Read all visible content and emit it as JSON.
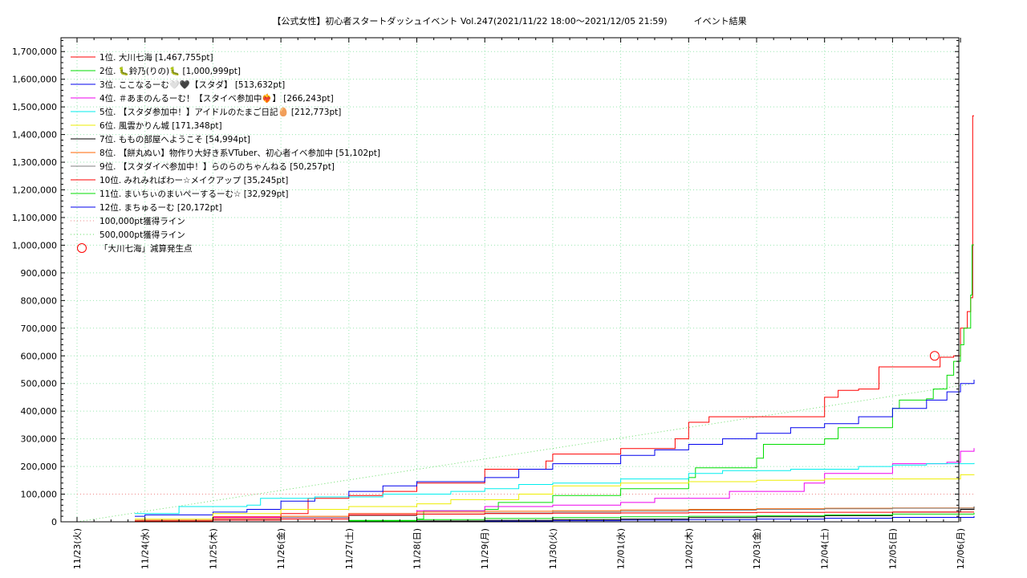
{
  "chart_data": {
    "type": "line",
    "title": "【公式女性】初心者スタートダッシュイベント Vol.247(2021/11/22 18:00～2021/12/05 21:59)　　　イベント結果",
    "xlabel": "",
    "ylabel": "",
    "ylim": [
      0,
      1750000
    ],
    "xlim": [
      "2021-11-22 18:00",
      "2021-12-06 00:00"
    ],
    "grid": true,
    "legend_position": "top-left",
    "x_ticks": [
      "11/23(火)",
      "11/24(水)",
      "11/25(木)",
      "11/26(金)",
      "11/27(土)",
      "11/28(日)",
      "11/29(月)",
      "11/30(火)",
      "12/01(水)",
      "12/02(木)",
      "12/03(金)",
      "12/04(土)",
      "12/05(日)",
      "12/06(月)"
    ],
    "y_ticks": [
      "0",
      "100,000",
      "200,000",
      "300,000",
      "400,000",
      "500,000",
      "600,000",
      "700,000",
      "800,000",
      "900,000",
      "1,000,000",
      "1,100,000",
      "1,200,000",
      "1,300,000",
      "1,400,000",
      "1,500,000",
      "1,600,000",
      "1,700,000"
    ],
    "series": [
      {
        "name": "1位. 大川七海 [1,467,755pt]",
        "color": "#ff0000",
        "style": "solid",
        "points": [
          [
            0.85,
            0
          ],
          [
            0.95,
            5000
          ],
          [
            2.0,
            18000
          ],
          [
            3.0,
            30000
          ],
          [
            3.4,
            85000
          ],
          [
            4.0,
            95000
          ],
          [
            4.5,
            110000
          ],
          [
            5.0,
            140000
          ],
          [
            6.0,
            190000
          ],
          [
            6.9,
            220000
          ],
          [
            7.0,
            245000
          ],
          [
            8.0,
            265000
          ],
          [
            8.8,
            300000
          ],
          [
            9.0,
            360000
          ],
          [
            9.3,
            380000
          ],
          [
            10.0,
            380000
          ],
          [
            10.8,
            380000
          ],
          [
            11.0,
            450000
          ],
          [
            11.2,
            475000
          ],
          [
            11.5,
            480000
          ],
          [
            11.8,
            560000
          ],
          [
            12.6,
            560000
          ],
          [
            12.7,
            595000
          ],
          [
            12.9,
            600000
          ],
          [
            13.0,
            700000
          ],
          [
            13.1,
            760000
          ],
          [
            13.15,
            810000
          ],
          [
            13.18,
            1467755
          ],
          [
            13.2,
            1467755
          ]
        ]
      },
      {
        "name": "2位. 🐛鈴乃(りの)🐛 [1,000,999pt]",
        "color": "#00dd00",
        "style": "solid",
        "points": [
          [
            3.0,
            0
          ],
          [
            4.0,
            5000
          ],
          [
            5.0,
            10000
          ],
          [
            5.1,
            40000
          ],
          [
            6.0,
            45000
          ],
          [
            6.2,
            70000
          ],
          [
            7.0,
            95000
          ],
          [
            8.0,
            120000
          ],
          [
            9.0,
            160000
          ],
          [
            9.1,
            195000
          ],
          [
            10.0,
            230000
          ],
          [
            10.1,
            280000
          ],
          [
            11.0,
            300000
          ],
          [
            11.2,
            340000
          ],
          [
            12.0,
            410000
          ],
          [
            12.1,
            440000
          ],
          [
            12.5,
            445000
          ],
          [
            12.6,
            480000
          ],
          [
            12.8,
            530000
          ],
          [
            12.9,
            580000
          ],
          [
            13.0,
            640000
          ],
          [
            13.05,
            700000
          ],
          [
            13.15,
            820000
          ],
          [
            13.17,
            1000999
          ],
          [
            13.2,
            1000999
          ]
        ]
      },
      {
        "name": "3位. ここなるーむ🤍🖤【スタダ】 [513,632pt]",
        "color": "#0000ee",
        "style": "solid",
        "points": [
          [
            0.85,
            20000
          ],
          [
            1.0,
            25000
          ],
          [
            2.0,
            35000
          ],
          [
            2.5,
            45000
          ],
          [
            3.0,
            75000
          ],
          [
            3.5,
            90000
          ],
          [
            4.0,
            110000
          ],
          [
            4.5,
            130000
          ],
          [
            5.0,
            145000
          ],
          [
            6.0,
            160000
          ],
          [
            6.5,
            190000
          ],
          [
            7.0,
            210000
          ],
          [
            7.5,
            210000
          ],
          [
            8.0,
            240000
          ],
          [
            8.5,
            260000
          ],
          [
            9.0,
            280000
          ],
          [
            9.5,
            300000
          ],
          [
            10.0,
            320000
          ],
          [
            10.5,
            340000
          ],
          [
            11.0,
            355000
          ],
          [
            11.5,
            380000
          ],
          [
            12.0,
            410000
          ],
          [
            12.5,
            440000
          ],
          [
            12.8,
            470000
          ],
          [
            13.0,
            500000
          ],
          [
            13.2,
            513632
          ]
        ]
      },
      {
        "name": "4位. ＃あまのんるーむ！【スタイベ参加中❤️‍🔥】 [266,243pt]",
        "color": "#ee00ee",
        "style": "solid",
        "points": [
          [
            0.85,
            5000
          ],
          [
            2.0,
            15000
          ],
          [
            4.0,
            30000
          ],
          [
            5.0,
            40000
          ],
          [
            6.0,
            55000
          ],
          [
            7.0,
            60000
          ],
          [
            8.0,
            70000
          ],
          [
            8.5,
            85000
          ],
          [
            9.5,
            85000
          ],
          [
            9.6,
            110000
          ],
          [
            10.5,
            110000
          ],
          [
            10.7,
            140000
          ],
          [
            11.0,
            175000
          ],
          [
            11.9,
            175000
          ],
          [
            12.0,
            210000
          ],
          [
            12.8,
            215000
          ],
          [
            13.0,
            255000
          ],
          [
            13.2,
            266243
          ]
        ]
      },
      {
        "name": "5位. 【スタダ参加中！】アイドルのたまご日記🥚 [212,773pt]",
        "color": "#00eeee",
        "style": "solid",
        "points": [
          [
            0.85,
            30000
          ],
          [
            1.5,
            55000
          ],
          [
            2.5,
            60000
          ],
          [
            2.7,
            85000
          ],
          [
            3.5,
            90000
          ],
          [
            4.5,
            100000
          ],
          [
            5.5,
            110000
          ],
          [
            6.0,
            120000
          ],
          [
            6.5,
            135000
          ],
          [
            7.0,
            140000
          ],
          [
            8.0,
            155000
          ],
          [
            9.0,
            175000
          ],
          [
            9.5,
            185000
          ],
          [
            10.5,
            190000
          ],
          [
            11.5,
            200000
          ],
          [
            12.0,
            205000
          ],
          [
            12.5,
            210000
          ],
          [
            13.2,
            212773
          ]
        ]
      },
      {
        "name": "6位. 風雲かりん城 [171,348pt]",
        "color": "#eeee00",
        "style": "solid",
        "points": [
          [
            0.85,
            10000
          ],
          [
            2.0,
            30000
          ],
          [
            3.0,
            45000
          ],
          [
            4.0,
            55000
          ],
          [
            5.0,
            65000
          ],
          [
            5.5,
            80000
          ],
          [
            6.5,
            100000
          ],
          [
            7.0,
            130000
          ],
          [
            8.0,
            140000
          ],
          [
            9.0,
            145000
          ],
          [
            10.0,
            150000
          ],
          [
            11.0,
            155000
          ],
          [
            12.0,
            155000
          ],
          [
            12.9,
            155000
          ],
          [
            13.0,
            170000
          ],
          [
            13.2,
            171348
          ]
        ]
      },
      {
        "name": "7位. ももの部屋へようこそ [54,994pt]",
        "color": "#000000",
        "style": "solid",
        "points": [
          [
            3.0,
            0
          ],
          [
            5.0,
            3000
          ],
          [
            6.0,
            5000
          ],
          [
            7.0,
            8000
          ],
          [
            8.0,
            10000
          ],
          [
            9.0,
            15000
          ],
          [
            10.0,
            18000
          ],
          [
            11.0,
            22000
          ],
          [
            12.0,
            35000
          ],
          [
            13.0,
            45000
          ],
          [
            13.2,
            54994
          ]
        ]
      },
      {
        "name": "8位. 【餅丸ぬい】物作り大好き系VTuber、初心者イベ参加中 [51,102pt]",
        "color": "#ff6600",
        "style": "solid",
        "points": [
          [
            0.85,
            5000
          ],
          [
            2.0,
            12000
          ],
          [
            3.0,
            20000
          ],
          [
            4.0,
            30000
          ],
          [
            5.0,
            35000
          ],
          [
            6.0,
            38000
          ],
          [
            7.0,
            40000
          ],
          [
            8.0,
            43000
          ],
          [
            9.0,
            45000
          ],
          [
            10.0,
            47000
          ],
          [
            11.0,
            49000
          ],
          [
            12.0,
            50000
          ],
          [
            13.2,
            51102
          ]
        ]
      },
      {
        "name": "9位. 【スタダイベ参加中！】らのらのちゃんねる [50,257pt]",
        "color": "#808080",
        "style": "solid",
        "points": [
          [
            0.85,
            3000
          ],
          [
            2.0,
            8000
          ],
          [
            3.0,
            15000
          ],
          [
            4.0,
            22000
          ],
          [
            5.0,
            28000
          ],
          [
            6.0,
            32000
          ],
          [
            7.0,
            35000
          ],
          [
            8.0,
            38000
          ],
          [
            9.0,
            42000
          ],
          [
            10.0,
            45000
          ],
          [
            11.0,
            47000
          ],
          [
            12.0,
            49000
          ],
          [
            13.2,
            50257
          ]
        ]
      },
      {
        "name": "10位. みれみればわー☆メイクアップ [35,245pt]",
        "color": "#ff0000",
        "style": "solid",
        "points": [
          [
            0.85,
            2000
          ],
          [
            2.0,
            6000
          ],
          [
            3.0,
            10000
          ],
          [
            4.0,
            25000
          ],
          [
            5.0,
            28000
          ],
          [
            6.0,
            30000
          ],
          [
            7.0,
            31000
          ],
          [
            8.0,
            32000
          ],
          [
            9.0,
            33000
          ],
          [
            10.0,
            34000
          ],
          [
            11.0,
            34500
          ],
          [
            12.0,
            35000
          ],
          [
            13.2,
            35245
          ]
        ]
      },
      {
        "name": "11位. まいちぃのまいぺーするーむ☆ [32,929pt]",
        "color": "#00dd00",
        "style": "solid",
        "points": [
          [
            2.0,
            0
          ],
          [
            4.0,
            3000
          ],
          [
            5.0,
            8000
          ],
          [
            6.0,
            12000
          ],
          [
            7.0,
            15000
          ],
          [
            8.0,
            18000
          ],
          [
            9.0,
            20000
          ],
          [
            10.0,
            22000
          ],
          [
            11.0,
            25000
          ],
          [
            12.0,
            28000
          ],
          [
            13.2,
            32929
          ]
        ]
      },
      {
        "name": "12位. まちゅるーむ [20,172pt]",
        "color": "#0000ee",
        "style": "solid",
        "points": [
          [
            4.0,
            0
          ],
          [
            6.0,
            2000
          ],
          [
            7.0,
            4000
          ],
          [
            8.0,
            6000
          ],
          [
            9.0,
            8000
          ],
          [
            10.0,
            10000
          ],
          [
            11.0,
            13000
          ],
          [
            12.0,
            16000
          ],
          [
            13.2,
            20172
          ]
        ]
      },
      {
        "name": "100,000pt獲得ライン",
        "color": "#ee8888",
        "style": "dotted",
        "points": [
          [
            0,
            100000
          ],
          [
            13.2,
            100000
          ]
        ]
      },
      {
        "name": "500,000pt獲得ライン",
        "color": "#66dd66",
        "style": "dotted",
        "points": [
          [
            0,
            0
          ],
          [
            13.2,
            500000
          ]
        ]
      }
    ],
    "markers": [
      {
        "name": "「大川七海」減算発生点",
        "color": "#ff0000",
        "shape": "circle",
        "x": 12.62,
        "y": 600000
      }
    ]
  }
}
